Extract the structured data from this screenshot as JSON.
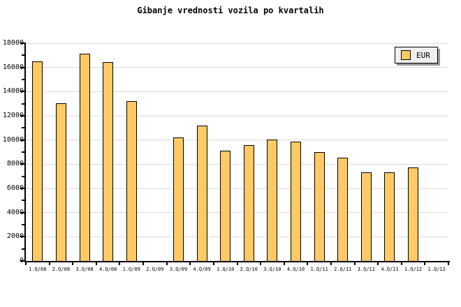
{
  "chart_data": {
    "type": "bar",
    "title": "Gibanje vrednosti vozila po kvartalih",
    "categories": [
      "1.Q/08",
      "2.Q/08",
      "3.Q/08",
      "4.Q/08",
      "1.Q/09",
      "2.Q/09",
      "3.Q/09",
      "4.Q/09",
      "1.Q/10",
      "2.Q/10",
      "3.Q/10",
      "4.Q/10",
      "1.Q/11",
      "2.Q/11",
      "3.Q/11",
      "4.Q/11",
      "1.Q/12",
      "1.Q/12"
    ],
    "series": [
      {
        "name": "EUR",
        "values": [
          16500,
          13050,
          17150,
          16450,
          13200,
          null,
          10200,
          11200,
          9100,
          9550,
          10050,
          9850,
          9000,
          8550,
          7350,
          7300,
          7750,
          null
        ]
      }
    ],
    "xlabel": "",
    "ylabel": "",
    "ylim": [
      0,
      18000
    ],
    "ytick_interval": 2000,
    "ytick_minor_interval": 1000,
    "ytick_labels": [
      "0",
      "2000",
      "4000",
      "6000",
      "8000",
      "10000",
      "12000",
      "14000",
      "16000",
      "18000"
    ],
    "grid": "horizontal-major",
    "legend_position": "top-right"
  },
  "colors": {
    "background": "#FFFFFF",
    "text": "#000000",
    "axis": "#000000",
    "gridline": "#DCDCDC",
    "bar_fill": "#FFC966",
    "bar_border": "#000000",
    "legend_bg": "#EFEFEF",
    "legend_shadow": "#999999"
  }
}
